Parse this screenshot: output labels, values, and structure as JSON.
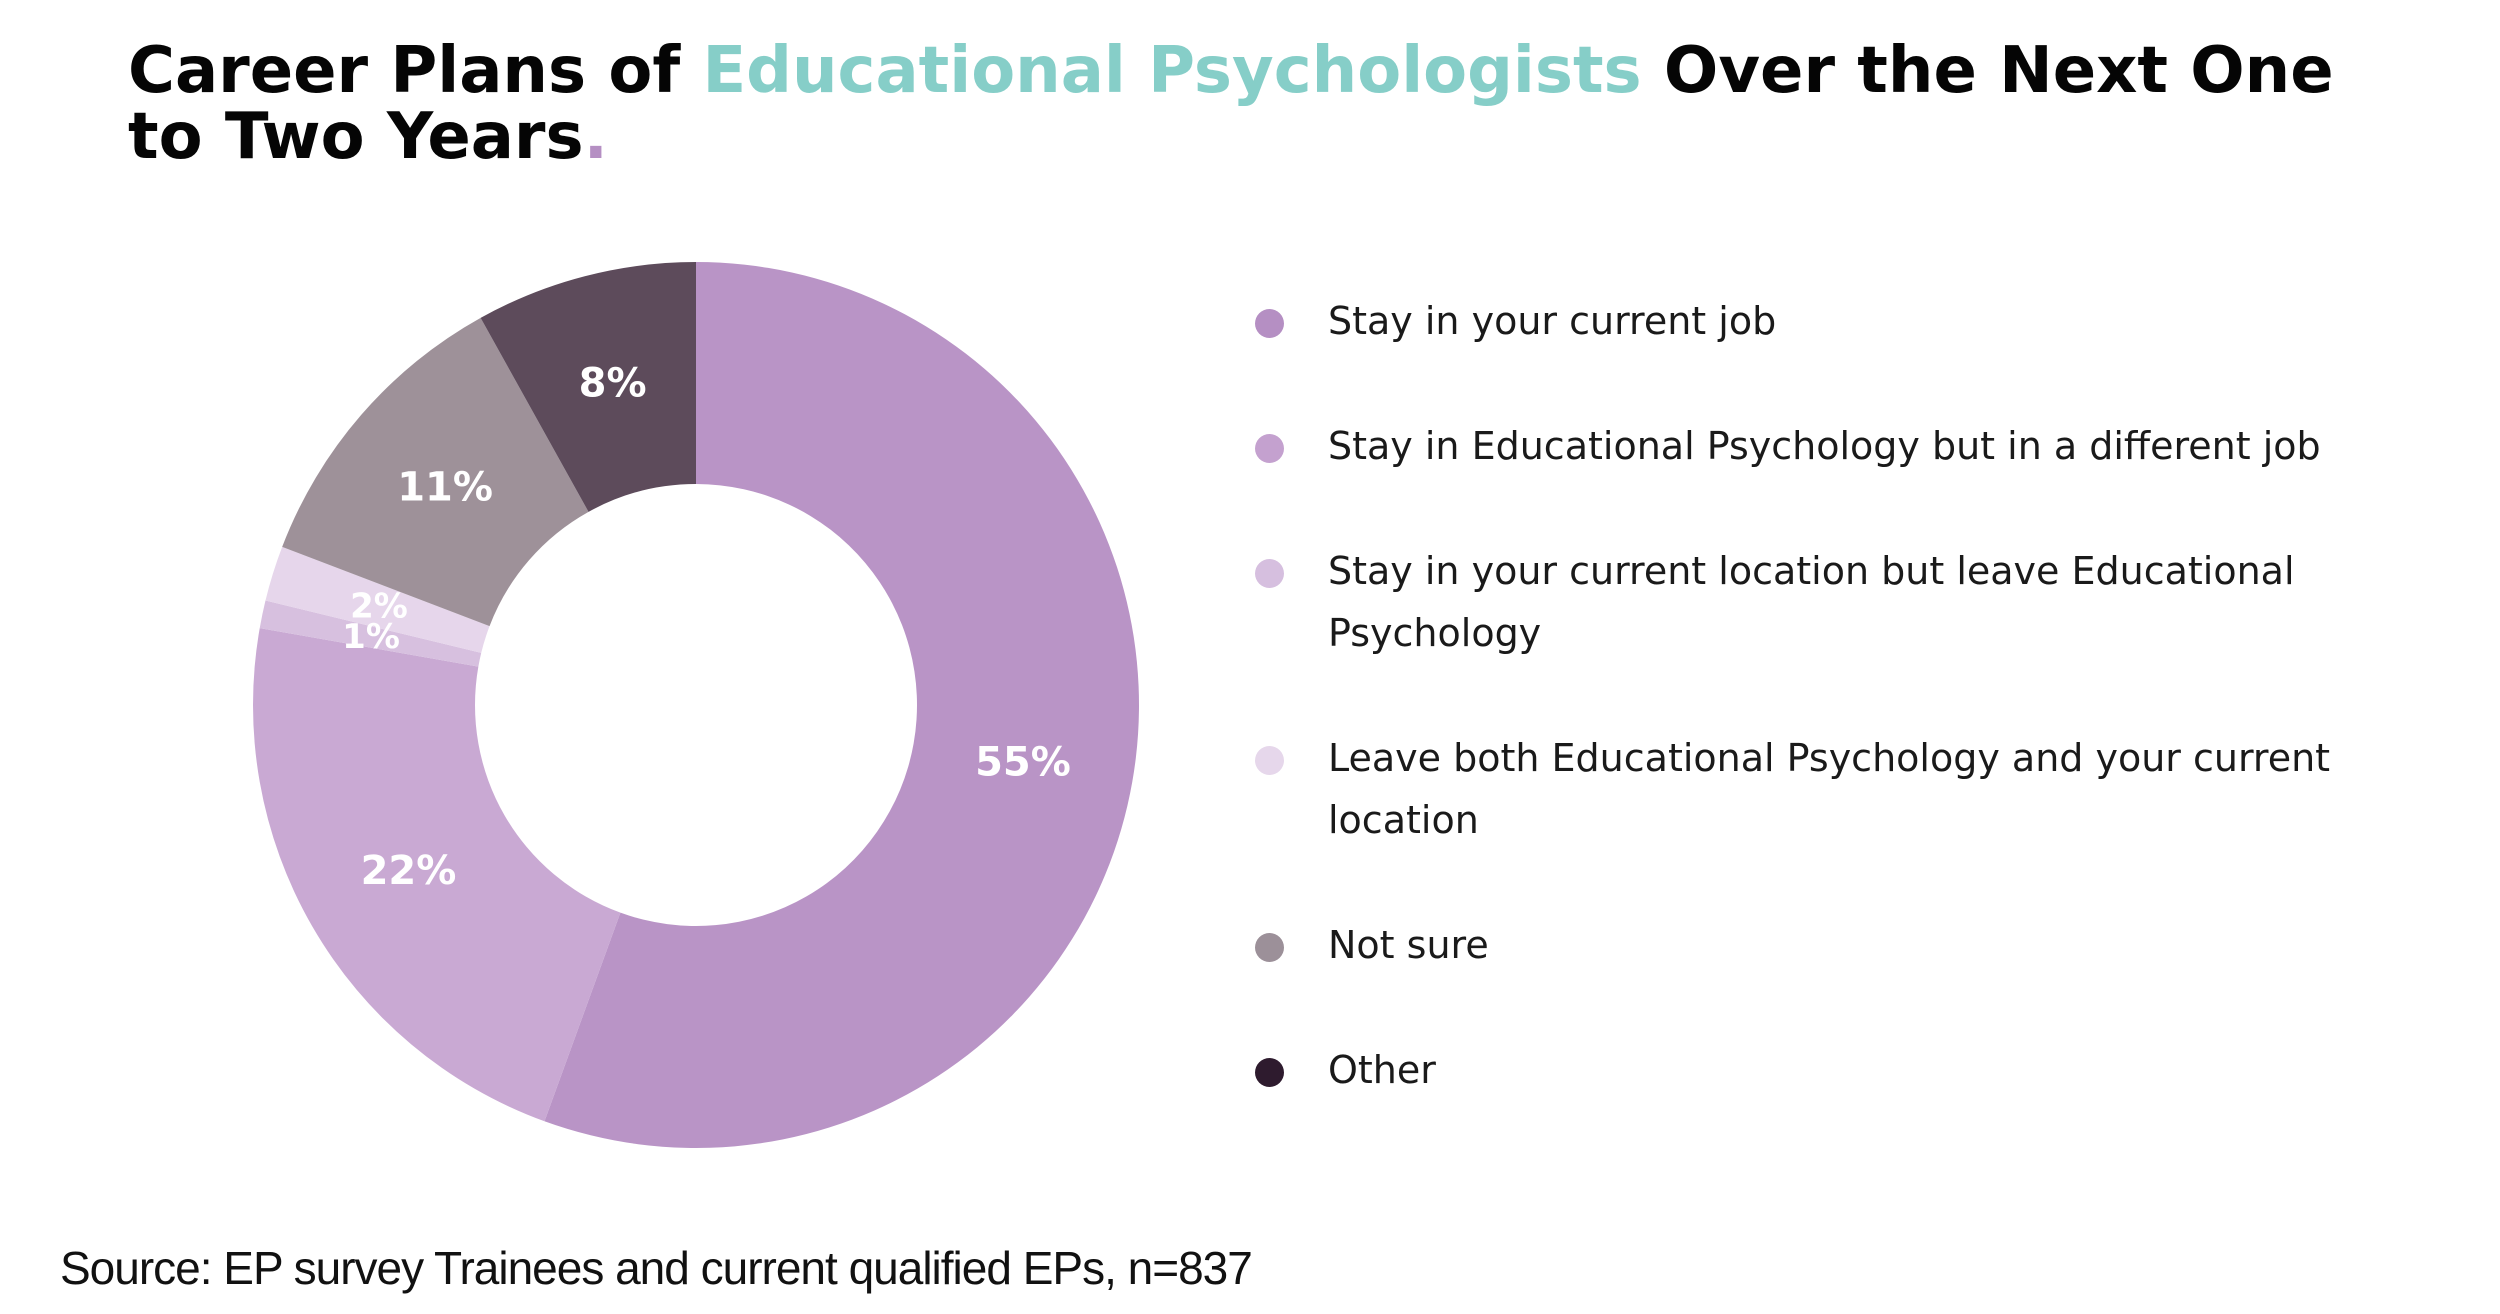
{
  "title": {
    "part1": "Career Plans of ",
    "accent": "Educational Psychologists",
    "part2": " Over the Next One to Two Years",
    "dot": ".",
    "accent_color": "#86cec8",
    "dot_color": "#b58fc3"
  },
  "source": "Source: EP survey Trainees and current qualified EPs, n=837",
  "chart_data": {
    "type": "pie",
    "variant": "donut",
    "start": "top, clockwise",
    "legend_position": "right",
    "slices": [
      {
        "label": "Stay in your current job",
        "value": 55,
        "display": "55%",
        "color": "#b994c6"
      },
      {
        "label": "Stay in Educational Psychology but in a different job",
        "value": 22,
        "display": "22%",
        "color": "#c9a9d3"
      },
      {
        "label": "Stay in your current location but leave Educational Psychology",
        "value": 1,
        "display": "1%",
        "color": "#d7c0df"
      },
      {
        "label": "Leave both Educational Psychology and your current location",
        "value": 2,
        "display": "2%",
        "color": "#e6d6eb"
      },
      {
        "label": "Not sure",
        "value": 11,
        "display": "11%",
        "color": "#9e9199"
      },
      {
        "label": "Other",
        "value": 8,
        "display": "8%",
        "color": "#5d4b5b"
      }
    ],
    "legend_colors": [
      "#b58fc3",
      "#c4a1cf",
      "#d6bfdf",
      "#e6d7eb",
      "#9c9099",
      "#2e1b2e"
    ]
  }
}
